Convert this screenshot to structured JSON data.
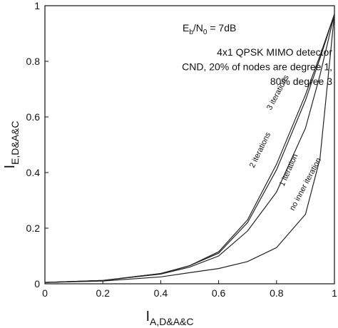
{
  "chart_data": {
    "type": "line",
    "x_label": {
      "main": "I",
      "sub": "A,D&A&C"
    },
    "y_label": {
      "main": "I",
      "sub": "E,D&A&C"
    },
    "annotation_parts": [
      {
        "text": "E"
      },
      {
        "text": "b",
        "sub": true
      },
      {
        "text": "/N"
      },
      {
        "text": "0",
        "sub": true
      },
      {
        "text": " = 7dB"
      }
    ],
    "annotations": [
      "4x1 QPSK MIMO detector",
      "CND, 20% of nodes are degree 1,",
      "80% degree 3"
    ],
    "x": [
      0,
      0.2,
      0.4,
      0.5,
      0.6,
      0.7,
      0.8,
      0.9,
      0.95,
      1
    ],
    "series": [
      {
        "name": "no inner iteration",
        "color": "#222",
        "values": [
          0.005,
          0.01,
          0.025,
          0.04,
          0.055,
          0.08,
          0.13,
          0.25,
          0.45,
          0.97
        ]
      },
      {
        "name": "1 iteration",
        "color": "#222",
        "values": [
          0.005,
          0.012,
          0.035,
          0.06,
          0.1,
          0.19,
          0.33,
          0.56,
          0.75,
          0.97
        ]
      },
      {
        "name": "2 iterations",
        "color": "#222",
        "values": [
          0.005,
          0.012,
          0.037,
          0.065,
          0.115,
          0.23,
          0.43,
          0.68,
          0.82,
          0.97
        ]
      },
      {
        "name": "3 iterations",
        "color": "#222",
        "values": [
          0.005,
          0.012,
          0.037,
          0.065,
          0.11,
          0.22,
          0.41,
          0.66,
          0.81,
          0.97
        ]
      }
    ],
    "xlim": [
      0,
      1
    ],
    "ylim": [
      0,
      1
    ],
    "xticks": [
      0,
      0.2,
      0.4,
      0.6,
      0.8,
      1
    ],
    "yticks": [
      0,
      0.2,
      0.4,
      0.6,
      0.8,
      1
    ],
    "grid": false
  }
}
